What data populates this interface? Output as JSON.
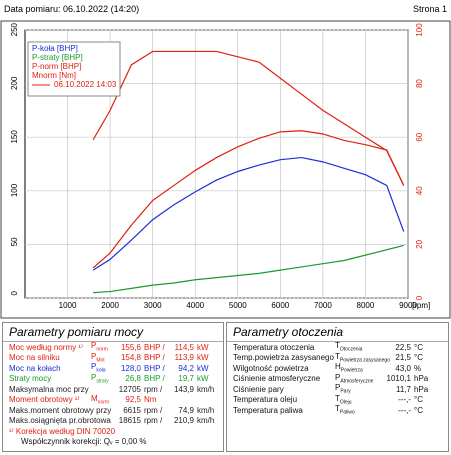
{
  "header": {
    "date": "Data pomiaru: 06.10.2022 (14:20)",
    "page": "Strona 1"
  },
  "chart_data": {
    "type": "line",
    "x_label": "[rpm]",
    "x": [
      1600,
      2000,
      2500,
      3000,
      3500,
      4000,
      4500,
      5000,
      5500,
      6000,
      6500,
      7000,
      7500,
      8000,
      8500,
      8900
    ],
    "xlim": [
      0,
      9000
    ],
    "xticks": [
      1000,
      2000,
      3000,
      4000,
      5000,
      6000,
      7000,
      8000,
      9000
    ],
    "ylim": [
      0,
      250
    ],
    "yticks": [
      0,
      50,
      100,
      150,
      200,
      250
    ],
    "y2lim": [
      0,
      100
    ],
    "y2ticks": [
      0,
      20,
      40,
      60,
      80,
      100
    ],
    "y2color": "#e02010",
    "grid": true,
    "series": [
      {
        "name": "P-koła [BHP]",
        "color": "#1a2fd8",
        "values": [
          26,
          36,
          54,
          73,
          87,
          99,
          110,
          118,
          124,
          129,
          131,
          127,
          121,
          115,
          105,
          62
        ]
      },
      {
        "name": "P-straty [BHP]",
        "color": "#1a9a2a",
        "values": [
          5,
          6,
          9,
          12,
          14,
          17,
          19,
          21,
          23,
          26,
          29,
          32,
          35,
          40,
          45,
          49
        ]
      },
      {
        "name": "P-norm [BHP]",
        "color": "#e02010",
        "values": [
          28,
          42,
          68,
          91,
          105,
          119,
          131,
          141,
          149,
          155,
          156,
          153,
          147,
          143,
          138,
          105
        ]
      },
      {
        "name": "Mnorm [Nm]",
        "color": "#e02010",
        "axis": "y2",
        "values": [
          59,
          70,
          87,
          92,
          92,
          92,
          92,
          90,
          88,
          82,
          76,
          70,
          65,
          60,
          55,
          42
        ]
      }
    ],
    "run_label": "06.10.2022 14:03"
  },
  "power": {
    "title": "Parametry pomiaru mocy",
    "rows": [
      {
        "label": "Moc według normy ¹⁾",
        "sym": "P",
        "sub": "norm",
        "v1": "155,6",
        "u1": "BHP /",
        "v2": "114,5",
        "u2": "kW",
        "color": "#e02010"
      },
      {
        "label": "Moc na silniku",
        "sym": "P",
        "sub": "Mot",
        "v1": "154,8",
        "u1": "BHP /",
        "v2": "113,9",
        "u2": "kW",
        "color": "#e02010"
      },
      {
        "label": "Moc na kołach",
        "sym": "P",
        "sub": "koła",
        "v1": "128,0",
        "u1": "BHP /",
        "v2": "94,2",
        "u2": "kW",
        "color": "#1a2fd8"
      },
      {
        "label": "Straty mocy",
        "sym": "P",
        "sub": "straty",
        "v1": "26,8",
        "u1": "BHP /",
        "v2": "19,7",
        "u2": "kW",
        "color": "#1a9a2a"
      },
      {
        "label": "Maksymalna moc przy",
        "v1": "12705",
        "u1": "rpm /",
        "v2": "143,9",
        "u2": "km/h",
        "color": "#222"
      },
      {
        "label": "Moment obrotowy ¹⁾",
        "sym": "M",
        "sub": "norm",
        "v1": "92,5",
        "u1": "Nm",
        "color": "#e02010"
      },
      {
        "label": "Maks.moment obrotowy przy",
        "v1": "6615",
        "u1": "rpm /",
        "v2": "74,9",
        "u2": "km/h",
        "color": "#222"
      },
      {
        "label": "Maks.osiągnięta pr.obrotowa",
        "v1": "18615",
        "u1": "rpm /",
        "v2": "210,9",
        "u2": "km/h",
        "color": "#222"
      }
    ],
    "note": "¹⁾ Korekcja według DIN 70020",
    "factor": "Współczynnik korekcji: Qᵥ =  0,00 %"
  },
  "ambient": {
    "title": "Parametry otoczenia",
    "rows": [
      {
        "label": "Temperatura otoczenia",
        "sym": "T",
        "sub": "Otoczenia",
        "v1": "22,5",
        "u1": "°C"
      },
      {
        "label": "Temp.powietrza zasysanego",
        "sym": "T",
        "sub": "Powietrza zasysanego",
        "v1": "21,5",
        "u1": "°C"
      },
      {
        "label": "Wilgotność powietrza",
        "sym": "H",
        "sub": "Powietrza",
        "v1": "43,0",
        "u1": "%"
      },
      {
        "label": "Ciśnienie atmosferyczne",
        "sym": "P",
        "sub": "Atmosferyczne",
        "v1": "1010,1",
        "u1": "hPa"
      },
      {
        "label": "Ciśnienie pary",
        "sym": "P",
        "sub": "Pary",
        "v1": "11,7",
        "u1": "hPa"
      },
      {
        "label": "Temperatura oleju",
        "sym": "T",
        "sub": "Oleju",
        "v1": "---,-",
        "u1": "°C"
      },
      {
        "label": "Temperatura paliwa",
        "sym": "T",
        "sub": "Paliwo",
        "v1": "---,-",
        "u1": "°C"
      }
    ]
  }
}
